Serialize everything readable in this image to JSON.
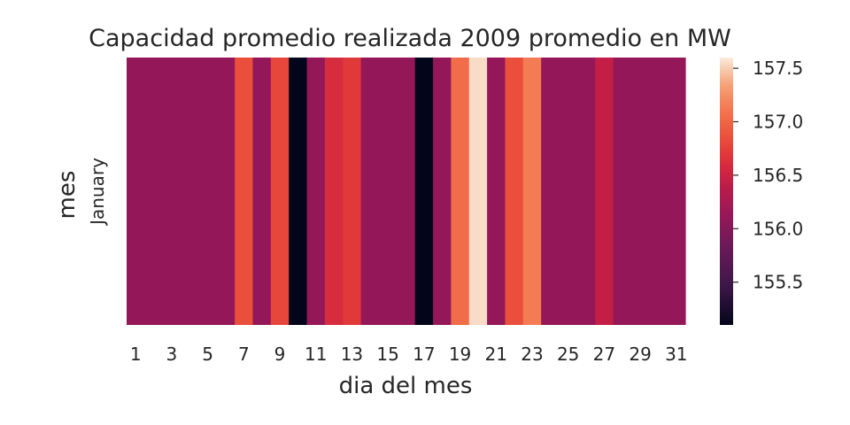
{
  "chart_data": {
    "type": "heatmap",
    "title": "Capacidad promedio realizada 2009 promedio en MW",
    "xlabel": "dia del mes",
    "ylabel": "mes",
    "rows": [
      "January"
    ],
    "columns": [
      1,
      2,
      3,
      4,
      5,
      6,
      7,
      8,
      9,
      10,
      11,
      12,
      13,
      14,
      15,
      16,
      17,
      18,
      19,
      20,
      21,
      22,
      23,
      24,
      25,
      26,
      27,
      28,
      29,
      30,
      31
    ],
    "xtick_labels": [
      "1",
      "3",
      "5",
      "7",
      "9",
      "11",
      "13",
      "15",
      "17",
      "19",
      "21",
      "23",
      "25",
      "27",
      "29",
      "31"
    ],
    "values": [
      [
        156.1,
        156.1,
        156.1,
        156.1,
        156.1,
        156.1,
        156.85,
        156.1,
        156.8,
        155.1,
        156.1,
        156.6,
        156.7,
        156.1,
        156.1,
        156.1,
        155.1,
        156.1,
        157.05,
        157.55,
        156.1,
        156.85,
        157.15,
        156.1,
        156.1,
        156.1,
        156.45,
        156.1,
        156.1,
        156.1,
        156.1
      ]
    ],
    "colorbar": {
      "min": 155.1,
      "max": 157.6,
      "ticks": [
        "155.5",
        "156.0",
        "156.5",
        "157.0",
        "157.5"
      ],
      "colormap": "rocket"
    },
    "grid": false
  }
}
